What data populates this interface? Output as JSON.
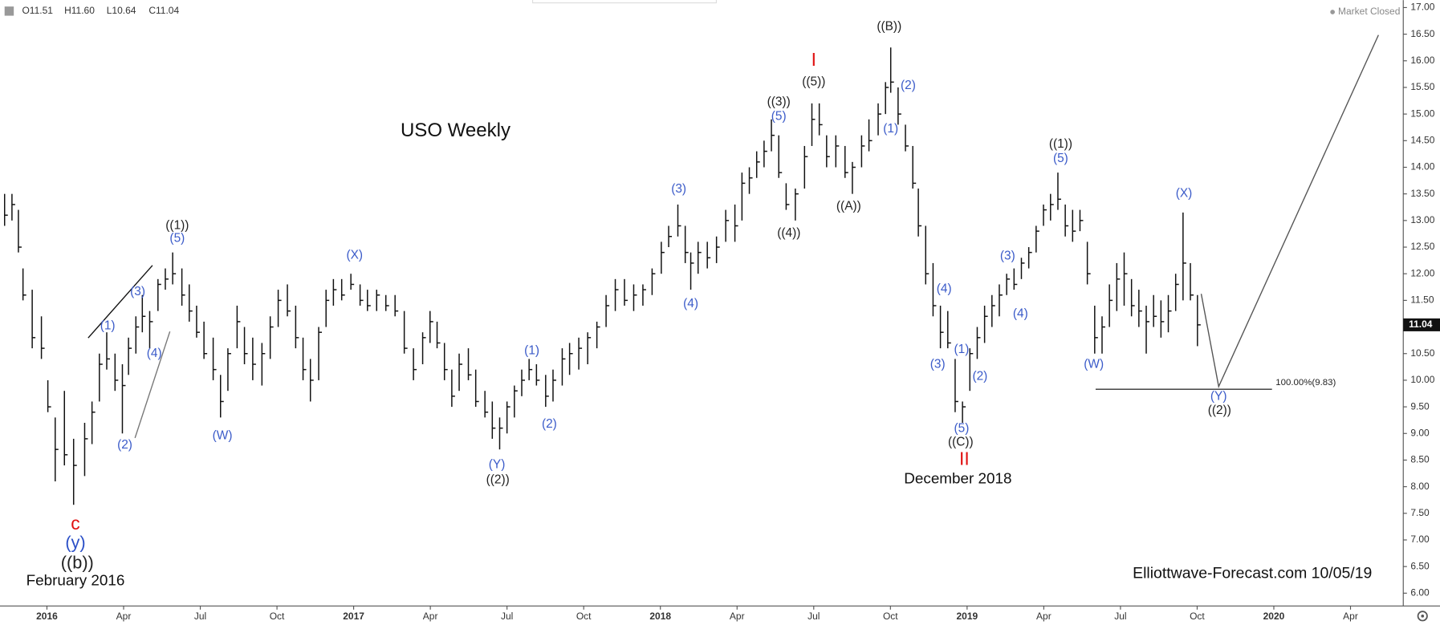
{
  "chart_data": {
    "type": "hlc",
    "title": "USO Weekly",
    "watermark": "Elliottwave-Forecast.com 10/05/19",
    "status": "Market Closed",
    "header": [
      "O11.51",
      "H11.60",
      "L10.64",
      "C11.04"
    ],
    "color": "#111111",
    "x": [
      2015.862,
      2015.886,
      2015.907,
      2015.922,
      2015.952,
      2015.982,
      2016.003,
      2016.027,
      2016.057,
      2016.087,
      2016.123,
      2016.147,
      2016.171,
      2016.195,
      2016.222,
      2016.246,
      2016.266,
      2016.29,
      2016.311,
      2016.335,
      2016.362,
      2016.386,
      2016.41,
      2016.44,
      2016.464,
      2016.488,
      2016.512,
      2016.542,
      2016.566,
      2016.59,
      2016.62,
      2016.644,
      2016.671,
      2016.701,
      2016.728,
      2016.754,
      2016.784,
      2016.811,
      2016.835,
      2016.859,
      2016.886,
      2016.91,
      2016.934,
      2016.961,
      2016.991,
      2017.021,
      2017.045,
      2017.075,
      2017.105,
      2017.135,
      2017.165,
      2017.195,
      2017.225,
      2017.249,
      2017.272,
      2017.296,
      2017.32,
      2017.344,
      2017.374,
      2017.398,
      2017.428,
      2017.452,
      2017.476,
      2017.5,
      2017.524,
      2017.548,
      2017.572,
      2017.596,
      2017.626,
      2017.65,
      2017.68,
      2017.704,
      2017.734,
      2017.763,
      2017.793,
      2017.823,
      2017.853,
      2017.883,
      2017.913,
      2017.943,
      2017.973,
      2018.003,
      2018.027,
      2018.057,
      2018.081,
      2018.099,
      2018.123,
      2018.153,
      2018.183,
      2018.213,
      2018.243,
      2018.266,
      2018.29,
      2018.314,
      2018.338,
      2018.362,
      2018.386,
      2018.41,
      2018.44,
      2018.47,
      2018.494,
      2018.518,
      2018.542,
      2018.572,
      2018.602,
      2018.626,
      2018.656,
      2018.68,
      2018.71,
      2018.734,
      2018.751,
      2018.775,
      2018.799,
      2018.823,
      2018.841,
      2018.865,
      2018.889,
      2018.913,
      2018.937,
      2018.961,
      2018.985,
      2019.009,
      2019.033,
      2019.057,
      2019.081,
      2019.105,
      2019.129,
      2019.153,
      2019.177,
      2019.201,
      2019.225,
      2019.249,
      2019.272,
      2019.296,
      2019.32,
      2019.344,
      2019.368,
      2019.392,
      2019.416,
      2019.44,
      2019.464,
      2019.488,
      2019.512,
      2019.536,
      2019.56,
      2019.584,
      2019.608,
      2019.632,
      2019.656,
      2019.68,
      2019.704,
      2019.728,
      2019.751
    ],
    "low": [
      12.9,
      13.0,
      12.4,
      11.5,
      10.6,
      10.4,
      9.4,
      8.1,
      8.4,
      7.66,
      8.2,
      8.8,
      9.6,
      10.2,
      9.8,
      9.0,
      10.1,
      10.5,
      10.9,
      10.6,
      11.3,
      11.7,
      11.8,
      11.4,
      11.1,
      10.8,
      10.4,
      10.0,
      9.3,
      9.8,
      10.6,
      10.3,
      10.0,
      9.9,
      10.4,
      11.0,
      11.2,
      10.6,
      10.0,
      9.6,
      10.0,
      11.0,
      11.4,
      11.5,
      11.7,
      11.4,
      11.3,
      11.3,
      11.3,
      11.2,
      10.5,
      10.0,
      10.3,
      10.7,
      10.6,
      10.0,
      9.5,
      9.8,
      10.0,
      9.5,
      9.3,
      8.9,
      8.7,
      9.0,
      9.3,
      9.7,
      10.0,
      9.9,
      9.5,
      9.6,
      9.9,
      10.1,
      10.2,
      10.3,
      10.6,
      11.0,
      11.3,
      11.4,
      11.3,
      11.4,
      11.6,
      12.0,
      12.5,
      12.7,
      12.2,
      11.7,
      12.0,
      12.1,
      12.2,
      12.6,
      12.6,
      13.0,
      13.5,
      13.8,
      14.0,
      14.3,
      13.8,
      13.2,
      13.0,
      13.6,
      14.4,
      14.6,
      14.0,
      14.0,
      13.8,
      13.5,
      14.0,
      14.3,
      14.6,
      15.0,
      15.4,
      14.8,
      14.3,
      13.6,
      12.7,
      11.8,
      11.2,
      10.6,
      10.6,
      9.4,
      9.2,
      9.8,
      10.4,
      10.7,
      11.0,
      11.2,
      11.6,
      11.7,
      11.9,
      12.1,
      12.4,
      12.9,
      13.0,
      13.2,
      12.7,
      12.6,
      12.8,
      11.8,
      10.5,
      10.5,
      11.0,
      11.3,
      11.4,
      11.2,
      11.0,
      10.5,
      11.0,
      10.8,
      10.9,
      11.3,
      11.5,
      11.5,
      10.64
    ],
    "high": [
      13.5,
      13.5,
      13.2,
      12.1,
      11.7,
      11.2,
      10.0,
      9.3,
      9.8,
      8.9,
      9.2,
      9.6,
      10.5,
      10.9,
      10.5,
      10.3,
      10.8,
      11.2,
      11.6,
      11.3,
      11.9,
      12.1,
      12.4,
      12.1,
      11.8,
      11.4,
      11.1,
      10.8,
      10.1,
      10.6,
      11.4,
      11.0,
      10.8,
      10.7,
      11.2,
      11.7,
      11.8,
      11.4,
      10.8,
      10.4,
      11.0,
      11.7,
      11.9,
      11.9,
      12.0,
      11.8,
      11.7,
      11.7,
      11.6,
      11.6,
      11.3,
      10.6,
      10.9,
      11.3,
      11.1,
      10.7,
      10.2,
      10.5,
      10.6,
      10.2,
      9.8,
      9.6,
      9.3,
      9.6,
      9.9,
      10.2,
      10.4,
      10.3,
      10.1,
      10.2,
      10.6,
      10.7,
      10.8,
      10.9,
      11.1,
      11.6,
      11.9,
      11.9,
      11.8,
      11.8,
      12.1,
      12.6,
      12.9,
      13.3,
      12.9,
      12.4,
      12.6,
      12.6,
      12.7,
      13.2,
      13.3,
      13.9,
      14.0,
      14.3,
      14.5,
      14.9,
      14.6,
      13.7,
      13.6,
      14.4,
      15.2,
      15.2,
      14.6,
      14.6,
      14.4,
      14.1,
      14.6,
      14.9,
      15.2,
      15.6,
      16.25,
      15.5,
      14.8,
      14.4,
      13.6,
      12.9,
      12.2,
      11.4,
      11.3,
      10.4,
      9.6,
      10.6,
      11.0,
      11.4,
      11.6,
      11.8,
      12.0,
      12.1,
      12.3,
      12.5,
      12.9,
      13.3,
      13.5,
      13.9,
      13.3,
      13.2,
      13.2,
      12.6,
      11.4,
      11.2,
      11.8,
      12.2,
      12.4,
      11.9,
      11.7,
      11.4,
      11.6,
      11.5,
      11.6,
      12.0,
      13.15,
      12.2,
      11.6
    ],
    "close": [
      13.1,
      13.3,
      12.5,
      11.6,
      10.8,
      10.6,
      9.5,
      8.7,
      8.6,
      8.4,
      8.9,
      9.4,
      10.3,
      10.4,
      10.0,
      9.9,
      10.6,
      11.0,
      11.2,
      11.1,
      11.8,
      11.9,
      12.0,
      11.6,
      11.3,
      10.9,
      10.5,
      10.2,
      9.6,
      10.5,
      11.1,
      10.5,
      10.3,
      10.5,
      11.0,
      11.5,
      11.3,
      10.8,
      10.2,
      10.0,
      10.9,
      11.5,
      11.7,
      11.6,
      11.8,
      11.5,
      11.4,
      11.6,
      11.4,
      11.3,
      10.6,
      10.2,
      10.8,
      11.1,
      10.7,
      10.2,
      9.7,
      10.3,
      10.1,
      9.6,
      9.4,
      9.1,
      9.1,
      9.5,
      9.8,
      10.0,
      10.2,
      10.0,
      9.7,
      10.0,
      10.4,
      10.5,
      10.6,
      10.8,
      11.0,
      11.4,
      11.7,
      11.5,
      11.6,
      11.7,
      12.0,
      12.4,
      12.7,
      12.9,
      12.4,
      12.2,
      12.4,
      12.3,
      12.5,
      13.0,
      12.9,
      13.7,
      13.8,
      14.1,
      14.3,
      14.6,
      13.9,
      13.3,
      13.5,
      14.2,
      14.9,
      14.8,
      14.2,
      14.4,
      13.9,
      14.0,
      14.4,
      14.5,
      15.0,
      15.5,
      15.6,
      15.0,
      14.4,
      13.7,
      12.9,
      12.0,
      11.4,
      10.9,
      10.7,
      9.6,
      9.5,
      10.5,
      10.8,
      11.2,
      11.4,
      11.6,
      11.9,
      11.8,
      12.2,
      12.4,
      12.8,
      13.2,
      13.3,
      13.4,
      12.9,
      12.8,
      13.0,
      12.0,
      10.8,
      11.0,
      11.5,
      11.9,
      12.0,
      11.4,
      11.3,
      11.1,
      11.2,
      11.1,
      11.3,
      11.8,
      12.2,
      11.6,
      11.04
    ],
    "xlim": [
      2015.847,
      2020.422
    ],
    "ylim": [
      5.76,
      17.14
    ],
    "xticks": [
      2016,
      {
        "value": 2016.25,
        "label": "Apr"
      },
      {
        "value": 2016.5,
        "label": "Jul"
      },
      {
        "value": 2016.75,
        "label": "Oct"
      },
      2017,
      {
        "value": 2017.25,
        "label": "Apr"
      },
      {
        "value": 2017.5,
        "label": "Jul"
      },
      {
        "value": 2017.75,
        "label": "Oct"
      },
      2018,
      {
        "value": 2018.25,
        "label": "Apr"
      },
      {
        "value": 2018.5,
        "label": "Jul"
      },
      {
        "value": 2018.75,
        "label": "Oct"
      },
      2019,
      {
        "value": 2019.25,
        "label": "Apr"
      },
      {
        "value": 2019.5,
        "label": "Jul"
      },
      {
        "value": 2019.75,
        "label": "Oct"
      },
      2020,
      {
        "value": 2020.25,
        "label": "Apr"
      }
    ],
    "yticks": [
      {
        "value": 6,
        "label": "6.00"
      },
      {
        "value": 6.5,
        "label": "6.50"
      },
      {
        "value": 7,
        "label": "7.00"
      },
      {
        "value": 7.5,
        "label": "7.50"
      },
      {
        "value": 8,
        "label": "8.00"
      },
      {
        "value": 8.5,
        "label": "8.50"
      },
      {
        "value": 9,
        "label": "9.00"
      },
      {
        "value": 9.5,
        "label": "9.50"
      },
      {
        "value": 10,
        "label": "10.00"
      },
      {
        "value": 10.5,
        "label": "10.50"
      },
      {
        "value": 11,
        "label": "11.00"
      },
      {
        "value": 11.5,
        "label": "11.50"
      },
      {
        "value": 12,
        "label": "12.00"
      },
      {
        "value": 12.5,
        "label": "12.50"
      },
      {
        "value": 13,
        "label": "13.00"
      },
      {
        "value": 13.5,
        "label": "13.50"
      },
      {
        "value": 14,
        "label": "14.00"
      },
      {
        "value": 14.5,
        "label": "14.50"
      },
      {
        "value": 15,
        "label": "15.00"
      },
      {
        "value": 15.5,
        "label": "15.50"
      },
      {
        "value": 16,
        "label": "16.00"
      },
      {
        "value": 16.5,
        "label": "16.50"
      },
      {
        "value": 17,
        "label": "17.00"
      }
    ],
    "fib": {
      "value": 9.83,
      "label": "100.00%(9.83)",
      "x": [
        2019.419,
        2019.994
      ]
    },
    "annotations": [
      {
        "text": "c",
        "x": 2016.093,
        "y": 7.29,
        "color": "#e01010"
      },
      {
        "text": "(y)",
        "x": 2016.093,
        "y": 6.93,
        "color": "#2b4fc7"
      },
      {
        "text": "((b))",
        "x": 2016.099,
        "y": 6.55,
        "color": "#222222"
      },
      {
        "text": "February 2016",
        "x": 2016.093,
        "y": 6.22,
        "color": "#111111"
      },
      {
        "text": "((1))",
        "x": 2016.425,
        "y": 12.9,
        "color": "#222222"
      },
      {
        "text": "(5)",
        "x": 2016.425,
        "y": 12.66,
        "color": "#3b5bc9"
      },
      {
        "text": "(1)",
        "x": 2016.198,
        "y": 11.02,
        "color": "#3b5bc9"
      },
      {
        "text": "(3)",
        "x": 2016.296,
        "y": 11.66,
        "color": "#3b5bc9"
      },
      {
        "text": "(4)",
        "x": 2016.35,
        "y": 10.5,
        "color": "#3b5bc9"
      },
      {
        "text": "(2)",
        "x": 2016.254,
        "y": 8.78,
        "color": "#3b5bc9"
      },
      {
        "text": "(W)",
        "x": 2016.572,
        "y": 8.95,
        "color": "#3b5bc9"
      },
      {
        "text": "(X)",
        "x": 2017.003,
        "y": 12.34,
        "color": "#3b5bc9"
      },
      {
        "text": "(Y)",
        "x": 2017.467,
        "y": 8.41,
        "color": "#3b5bc9"
      },
      {
        "text": "((2))",
        "x": 2017.47,
        "y": 8.12,
        "color": "#222222"
      },
      {
        "text": "(1)",
        "x": 2017.581,
        "y": 10.55,
        "color": "#3b5bc9"
      },
      {
        "text": "(2)",
        "x": 2017.638,
        "y": 9.17,
        "color": "#3b5bc9"
      },
      {
        "text": "(3)",
        "x": 2018.06,
        "y": 13.59,
        "color": "#3b5bc9"
      },
      {
        "text": "(4)",
        "x": 2018.099,
        "y": 11.43,
        "color": "#3b5bc9"
      },
      {
        "text": "((3))",
        "x": 2018.386,
        "y": 15.22,
        "color": "#222222"
      },
      {
        "text": "(5)",
        "x": 2018.386,
        "y": 14.95,
        "color": "#3b5bc9"
      },
      {
        "text": "((4))",
        "x": 2018.419,
        "y": 12.76,
        "color": "#222222"
      },
      {
        "text": "I",
        "x": 2018.5,
        "y": 16.0,
        "color": "#e01010"
      },
      {
        "text": "((5))",
        "x": 2018.5,
        "y": 15.6,
        "color": "#222222"
      },
      {
        "text": "((B))",
        "x": 2018.746,
        "y": 16.64,
        "color": "#222222"
      },
      {
        "text": "(2)",
        "x": 2018.808,
        "y": 15.53,
        "color": "#3b5bc9"
      },
      {
        "text": "(1)",
        "x": 2018.751,
        "y": 14.72,
        "color": "#3b5bc9"
      },
      {
        "text": "((A))",
        "x": 2018.614,
        "y": 13.26,
        "color": "#222222"
      },
      {
        "text": "(4)",
        "x": 2018.925,
        "y": 11.71,
        "color": "#3b5bc9"
      },
      {
        "text": "(3)",
        "x": 2018.904,
        "y": 10.29,
        "color": "#3b5bc9"
      },
      {
        "text": "(1)",
        "x": 2018.982,
        "y": 10.57,
        "color": "#3b5bc9"
      },
      {
        "text": "(2)",
        "x": 2019.042,
        "y": 10.07,
        "color": "#3b5bc9"
      },
      {
        "text": "(5)",
        "x": 2018.982,
        "y": 9.09,
        "color": "#3b5bc9"
      },
      {
        "text": "((C))",
        "x": 2018.979,
        "y": 8.83,
        "color": "#222222"
      },
      {
        "text": "II",
        "x": 2018.991,
        "y": 8.5,
        "color": "#e01010"
      },
      {
        "text": "December 2018",
        "x": 2018.97,
        "y": 8.14,
        "color": "#111111"
      },
      {
        "text": "(3)",
        "x": 2019.132,
        "y": 12.33,
        "color": "#3b5bc9"
      },
      {
        "text": "(4)",
        "x": 2019.174,
        "y": 11.24,
        "color": "#3b5bc9"
      },
      {
        "text": "((1))",
        "x": 2019.305,
        "y": 14.43,
        "color": "#222222"
      },
      {
        "text": "(5)",
        "x": 2019.305,
        "y": 14.16,
        "color": "#3b5bc9"
      },
      {
        "text": "(W)",
        "x": 2019.413,
        "y": 10.29,
        "color": "#3b5bc9"
      },
      {
        "text": "(X)",
        "x": 2019.707,
        "y": 13.5,
        "color": "#3b5bc9"
      },
      {
        "text": "(Y)",
        "x": 2019.82,
        "y": 9.69,
        "color": "#3b5bc9"
      },
      {
        "text": "((2))",
        "x": 2019.823,
        "y": 9.43,
        "color": "#222222"
      }
    ]
  }
}
